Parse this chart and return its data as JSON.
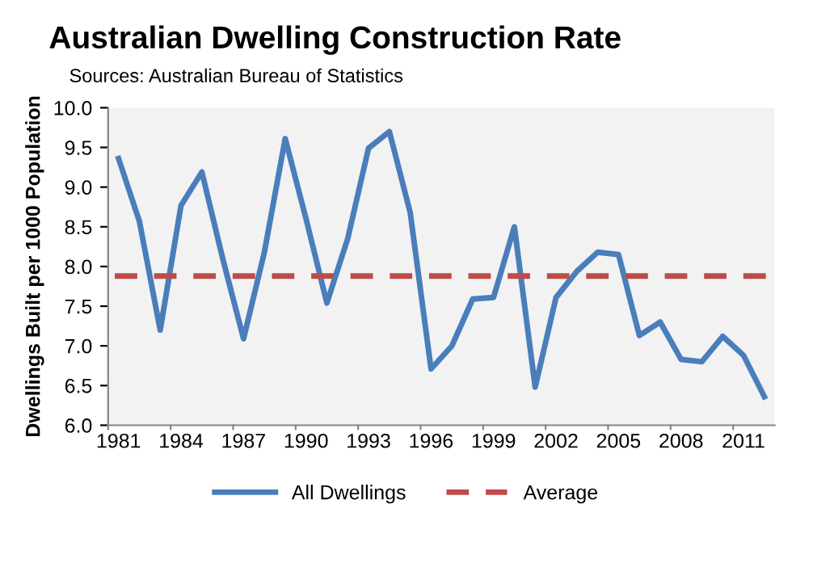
{
  "chart_data": {
    "type": "line",
    "title": "Australian Dwelling Construction Rate",
    "subtitle": "Sources: Australian Bureau of Statistics",
    "ylabel": "Dwellings Built per 1000 Population",
    "categories": [
      "1981",
      null,
      null,
      "1984",
      null,
      null,
      "1987",
      null,
      null,
      "1990",
      null,
      null,
      "1993",
      null,
      null,
      "1996",
      null,
      null,
      "1999",
      null,
      null,
      "2002",
      null,
      null,
      "2005",
      null,
      null,
      "2008",
      null,
      null,
      "2011",
      null
    ],
    "series": [
      {
        "name": "All Dwellings",
        "color": "#4a7ebb",
        "values": [
          9.36,
          8.57,
          7.2,
          8.77,
          9.19,
          8.1,
          7.09,
          8.18,
          9.61,
          8.6,
          7.54,
          8.35,
          9.49,
          9.7,
          8.68,
          6.71,
          7.0,
          7.59,
          7.61,
          8.5,
          6.48,
          7.61,
          7.94,
          8.18,
          8.15,
          7.13,
          7.3,
          6.83,
          6.8,
          7.12,
          6.88,
          6.36
        ]
      }
    ],
    "ref_lines": [
      {
        "axis": "y",
        "value": 7.88,
        "label": "Average",
        "color": "#be4b48",
        "line_style": "dashed"
      }
    ],
    "ylim": [
      6.0,
      10.0
    ],
    "yticks": [
      {
        "value": 6.0,
        "label": "6.0"
      },
      {
        "value": 6.5,
        "label": "6.5"
      },
      {
        "value": 7.0,
        "label": "7.0"
      },
      {
        "value": 7.5,
        "label": "7.5"
      },
      {
        "value": 8.0,
        "label": "8.0"
      },
      {
        "value": 8.5,
        "label": "8.5"
      },
      {
        "value": 9.0,
        "label": "9.0"
      },
      {
        "value": 9.5,
        "label": "9.5"
      },
      {
        "value": 10.0,
        "label": "10.0"
      }
    ],
    "grid": false,
    "legend": "bottom",
    "marker": "none",
    "line_style": "solid"
  }
}
